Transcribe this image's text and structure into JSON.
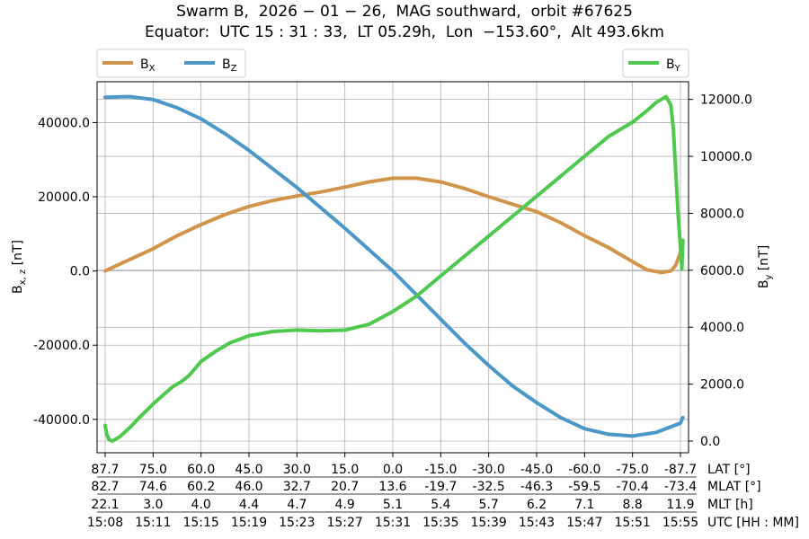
{
  "title": {
    "line1": "Swarm B,  2026 − 01 − 26,  MAG southward,  orbit #67625",
    "line2": "Equator:  UTC 15 : 31 : 33,  LT 05.29h,  Lon  −153.60°,  Alt 493.6km"
  },
  "colors": {
    "bx": "#d0954a",
    "bz": "#4b98c8",
    "by": "#4ec94e",
    "grid": "#b0b0b0"
  },
  "chart_data": {
    "type": "line",
    "x_axis": {
      "ticks_utc": [
        "15:08",
        "15:11",
        "15:15",
        "15:19",
        "15:23",
        "15:27",
        "15:31",
        "15:35",
        "15:39",
        "15:43",
        "15:47",
        "15:51",
        "15:55"
      ],
      "rows": [
        {
          "label": "LAT [°]",
          "values": [
            "87.7",
            "75.0",
            "60.0",
            "45.0",
            "30.0",
            "15.0",
            "0.0",
            "-15.0",
            "-30.0",
            "-45.0",
            "-60.0",
            "-75.0",
            "-87.7"
          ]
        },
        {
          "label": "MLAT [°]",
          "values": [
            "82.7",
            "74.6",
            "60.2",
            "46.0",
            "32.7",
            "20.7",
            "13.6",
            "-19.7",
            "-32.5",
            "-46.3",
            "-59.5",
            "-70.4",
            "-73.4"
          ]
        },
        {
          "label": "MLT [h]",
          "values": [
            "22.1",
            "3.0",
            "4.0",
            "4.4",
            "4.7",
            "4.9",
            "5.1",
            "5.4",
            "5.7",
            "6.2",
            "7.1",
            "8.8",
            "11.9"
          ]
        },
        {
          "label": "UTC [HH : MM]",
          "values": [
            "15:08",
            "15:11",
            "15:15",
            "15:19",
            "15:23",
            "15:27",
            "15:31",
            "15:35",
            "15:39",
            "15:43",
            "15:47",
            "15:51",
            "15:55"
          ]
        }
      ]
    },
    "left_axis": {
      "label_main": "B",
      "label_sub": "x, z",
      "label_unit": " [nT]",
      "ylim": [
        -49000,
        51000
      ],
      "ticks": [
        -40000,
        -20000,
        0,
        20000,
        40000
      ],
      "tick_labels": [
        "-40000.0",
        "-20000.0",
        "0.0",
        "20000.0",
        "40000.0"
      ]
    },
    "right_axis": {
      "label_main": "B",
      "label_sub": "y",
      "label_unit": " [nT]",
      "ylim": [
        -410,
        12620
      ],
      "ticks": [
        0,
        2000,
        4000,
        6000,
        8000,
        10000,
        12000
      ],
      "tick_labels": [
        "0.0",
        "2000.0",
        "4000.0",
        "6000.0",
        "8000.0",
        "10000.0",
        "12000.0"
      ]
    },
    "legend_left": {
      "placement": "top-left",
      "items": [
        {
          "main": "B",
          "sub": "X",
          "series": "bx"
        },
        {
          "main": "B",
          "sub": "Z",
          "series": "bz"
        }
      ]
    },
    "legend_right": {
      "placement": "top-right",
      "items": [
        {
          "main": "B",
          "sub": "Y",
          "series": "by"
        }
      ]
    },
    "grid": true,
    "series": [
      {
        "key": "bx",
        "axis": "left",
        "x": [
          0,
          0.5,
          1,
          1.5,
          2,
          2.5,
          3,
          3.5,
          4,
          4.5,
          5,
          5.5,
          6,
          6.5,
          7,
          7.5,
          8,
          8.5,
          9,
          9.5,
          10,
          10.5,
          11,
          11.3,
          11.6,
          11.8,
          11.9,
          12,
          12.05
        ],
        "values": [
          0,
          3000,
          6000,
          9500,
          12500,
          15200,
          17400,
          19000,
          20200,
          21300,
          22600,
          24000,
          25000,
          25000,
          24000,
          22200,
          20000,
          18000,
          16000,
          13000,
          9500,
          6300,
          2500,
          300,
          -400,
          0,
          1500,
          5000,
          7500
        ]
      },
      {
        "key": "bz",
        "axis": "left",
        "x": [
          0,
          0.5,
          1,
          1.5,
          2,
          2.5,
          3,
          3.5,
          4,
          4.5,
          5,
          5.5,
          6,
          6.5,
          7,
          7.5,
          8,
          8.5,
          9,
          9.5,
          10,
          10.5,
          11,
          11.5,
          12,
          12.05
        ],
        "values": [
          46800,
          47000,
          46200,
          44000,
          41000,
          37000,
          32500,
          27500,
          22500,
          17000,
          11500,
          5800,
          0,
          -6500,
          -13000,
          -19500,
          -25500,
          -31000,
          -35500,
          -39500,
          -42500,
          -44000,
          -44500,
          -43500,
          -41000,
          -39500
        ]
      },
      {
        "key": "by",
        "axis": "right",
        "x": [
          0,
          0.03,
          0.08,
          0.15,
          0.3,
          0.5,
          0.7,
          1,
          1.2,
          1.4,
          1.6,
          1.75,
          1.8,
          2,
          2.3,
          2.6,
          3,
          3.5,
          4,
          4.5,
          5,
          5.5,
          6,
          6.5,
          7,
          7.5,
          8,
          8.5,
          9,
          9.5,
          10,
          10.5,
          11,
          11.3,
          11.5,
          11.6,
          11.7,
          11.8,
          11.85,
          11.9,
          11.95,
          12,
          12.02,
          12.03,
          12.04,
          12.05
        ],
        "values": [
          550,
          250,
          50,
          0,
          150,
          450,
          800,
          1300,
          1600,
          1900,
          2100,
          2300,
          2400,
          2800,
          3150,
          3450,
          3700,
          3850,
          3900,
          3870,
          3900,
          4100,
          4550,
          5100,
          5800,
          6500,
          7200,
          7900,
          8600,
          9300,
          10000,
          10700,
          11200,
          11600,
          11900,
          12000,
          12100,
          11800,
          11000,
          9500,
          8000,
          6800,
          6300,
          6050,
          6600,
          7050
        ]
      }
    ]
  }
}
